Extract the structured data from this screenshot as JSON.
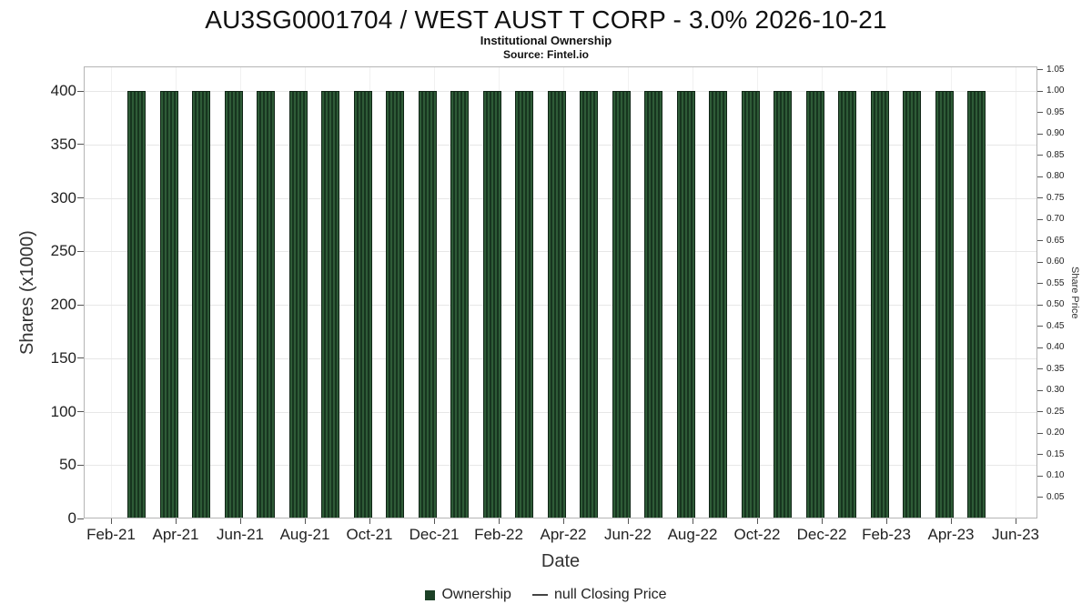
{
  "header": {
    "title": "AU3SG0001704 / WEST AUST T CORP - 3.0% 2026-10-21",
    "subtitle": "Institutional Ownership",
    "source": "Source: Fintel.io"
  },
  "chart_data": {
    "type": "bar",
    "title": "AU3SG0001704 / WEST AUST T CORP - 3.0% 2026-10-21",
    "subtitle": "Institutional Ownership",
    "source": "Source: Fintel.io",
    "xlabel": "Date",
    "ylabel": "Shares (x1000)",
    "ylabel_right": "Share Price",
    "grid": true,
    "legend_position": "bottom",
    "categories": [
      "Mar-21",
      "Apr-21",
      "May-21",
      "Jun-21",
      "Jul-21",
      "Aug-21",
      "Sep-21",
      "Oct-21",
      "Nov-21",
      "Dec-21",
      "Jan-22",
      "Feb-22",
      "Mar-22",
      "Apr-22",
      "May-22",
      "Jun-22",
      "Jul-22",
      "Aug-22",
      "Sep-22",
      "Oct-22",
      "Nov-22",
      "Dec-22",
      "Jan-23",
      "Feb-23",
      "Mar-23",
      "Apr-23",
      "May-23"
    ],
    "series": [
      {
        "name": "Ownership",
        "type": "bar",
        "color": "#1c4126",
        "values": [
          400,
          400,
          400,
          400,
          400,
          400,
          400,
          400,
          400,
          400,
          400,
          400,
          400,
          400,
          400,
          400,
          400,
          400,
          400,
          400,
          400,
          400,
          400,
          400,
          400,
          400,
          400
        ]
      },
      {
        "name": "null Closing Price",
        "type": "line",
        "color": "#444444",
        "values": []
      }
    ],
    "left_axis": {
      "label": "Shares (x1000)",
      "ticks": [
        0,
        50,
        100,
        150,
        200,
        250,
        300,
        350,
        400
      ],
      "range": [
        0,
        423
      ]
    },
    "right_axis": {
      "label": "Share Price",
      "tick_labels": [
        "1.05",
        "1.00",
        "0.95",
        "0.90",
        "0.85",
        "0.80",
        "0.75",
        "0.70",
        "0.65",
        "0.60",
        "0.55",
        "0.50",
        "0.45",
        "0.40",
        "0.35",
        "0.30",
        "0.25",
        "0.20",
        "0.15",
        "0.10",
        "0.05"
      ],
      "range": [
        0,
        1.0575
      ]
    },
    "x_axis": {
      "label": "Date",
      "tick_labels": [
        "Feb-21",
        "Apr-21",
        "Jun-21",
        "Aug-21",
        "Oct-21",
        "Dec-21",
        "Feb-22",
        "Apr-22",
        "Jun-22",
        "Aug-22",
        "Oct-22",
        "Dec-22",
        "Feb-23",
        "Apr-23",
        "Jun-23"
      ]
    },
    "legend": [
      {
        "label": "Ownership",
        "marker": "square",
        "color": "#1c4126"
      },
      {
        "label": "null Closing Price",
        "marker": "line",
        "color": "#444444"
      }
    ]
  }
}
